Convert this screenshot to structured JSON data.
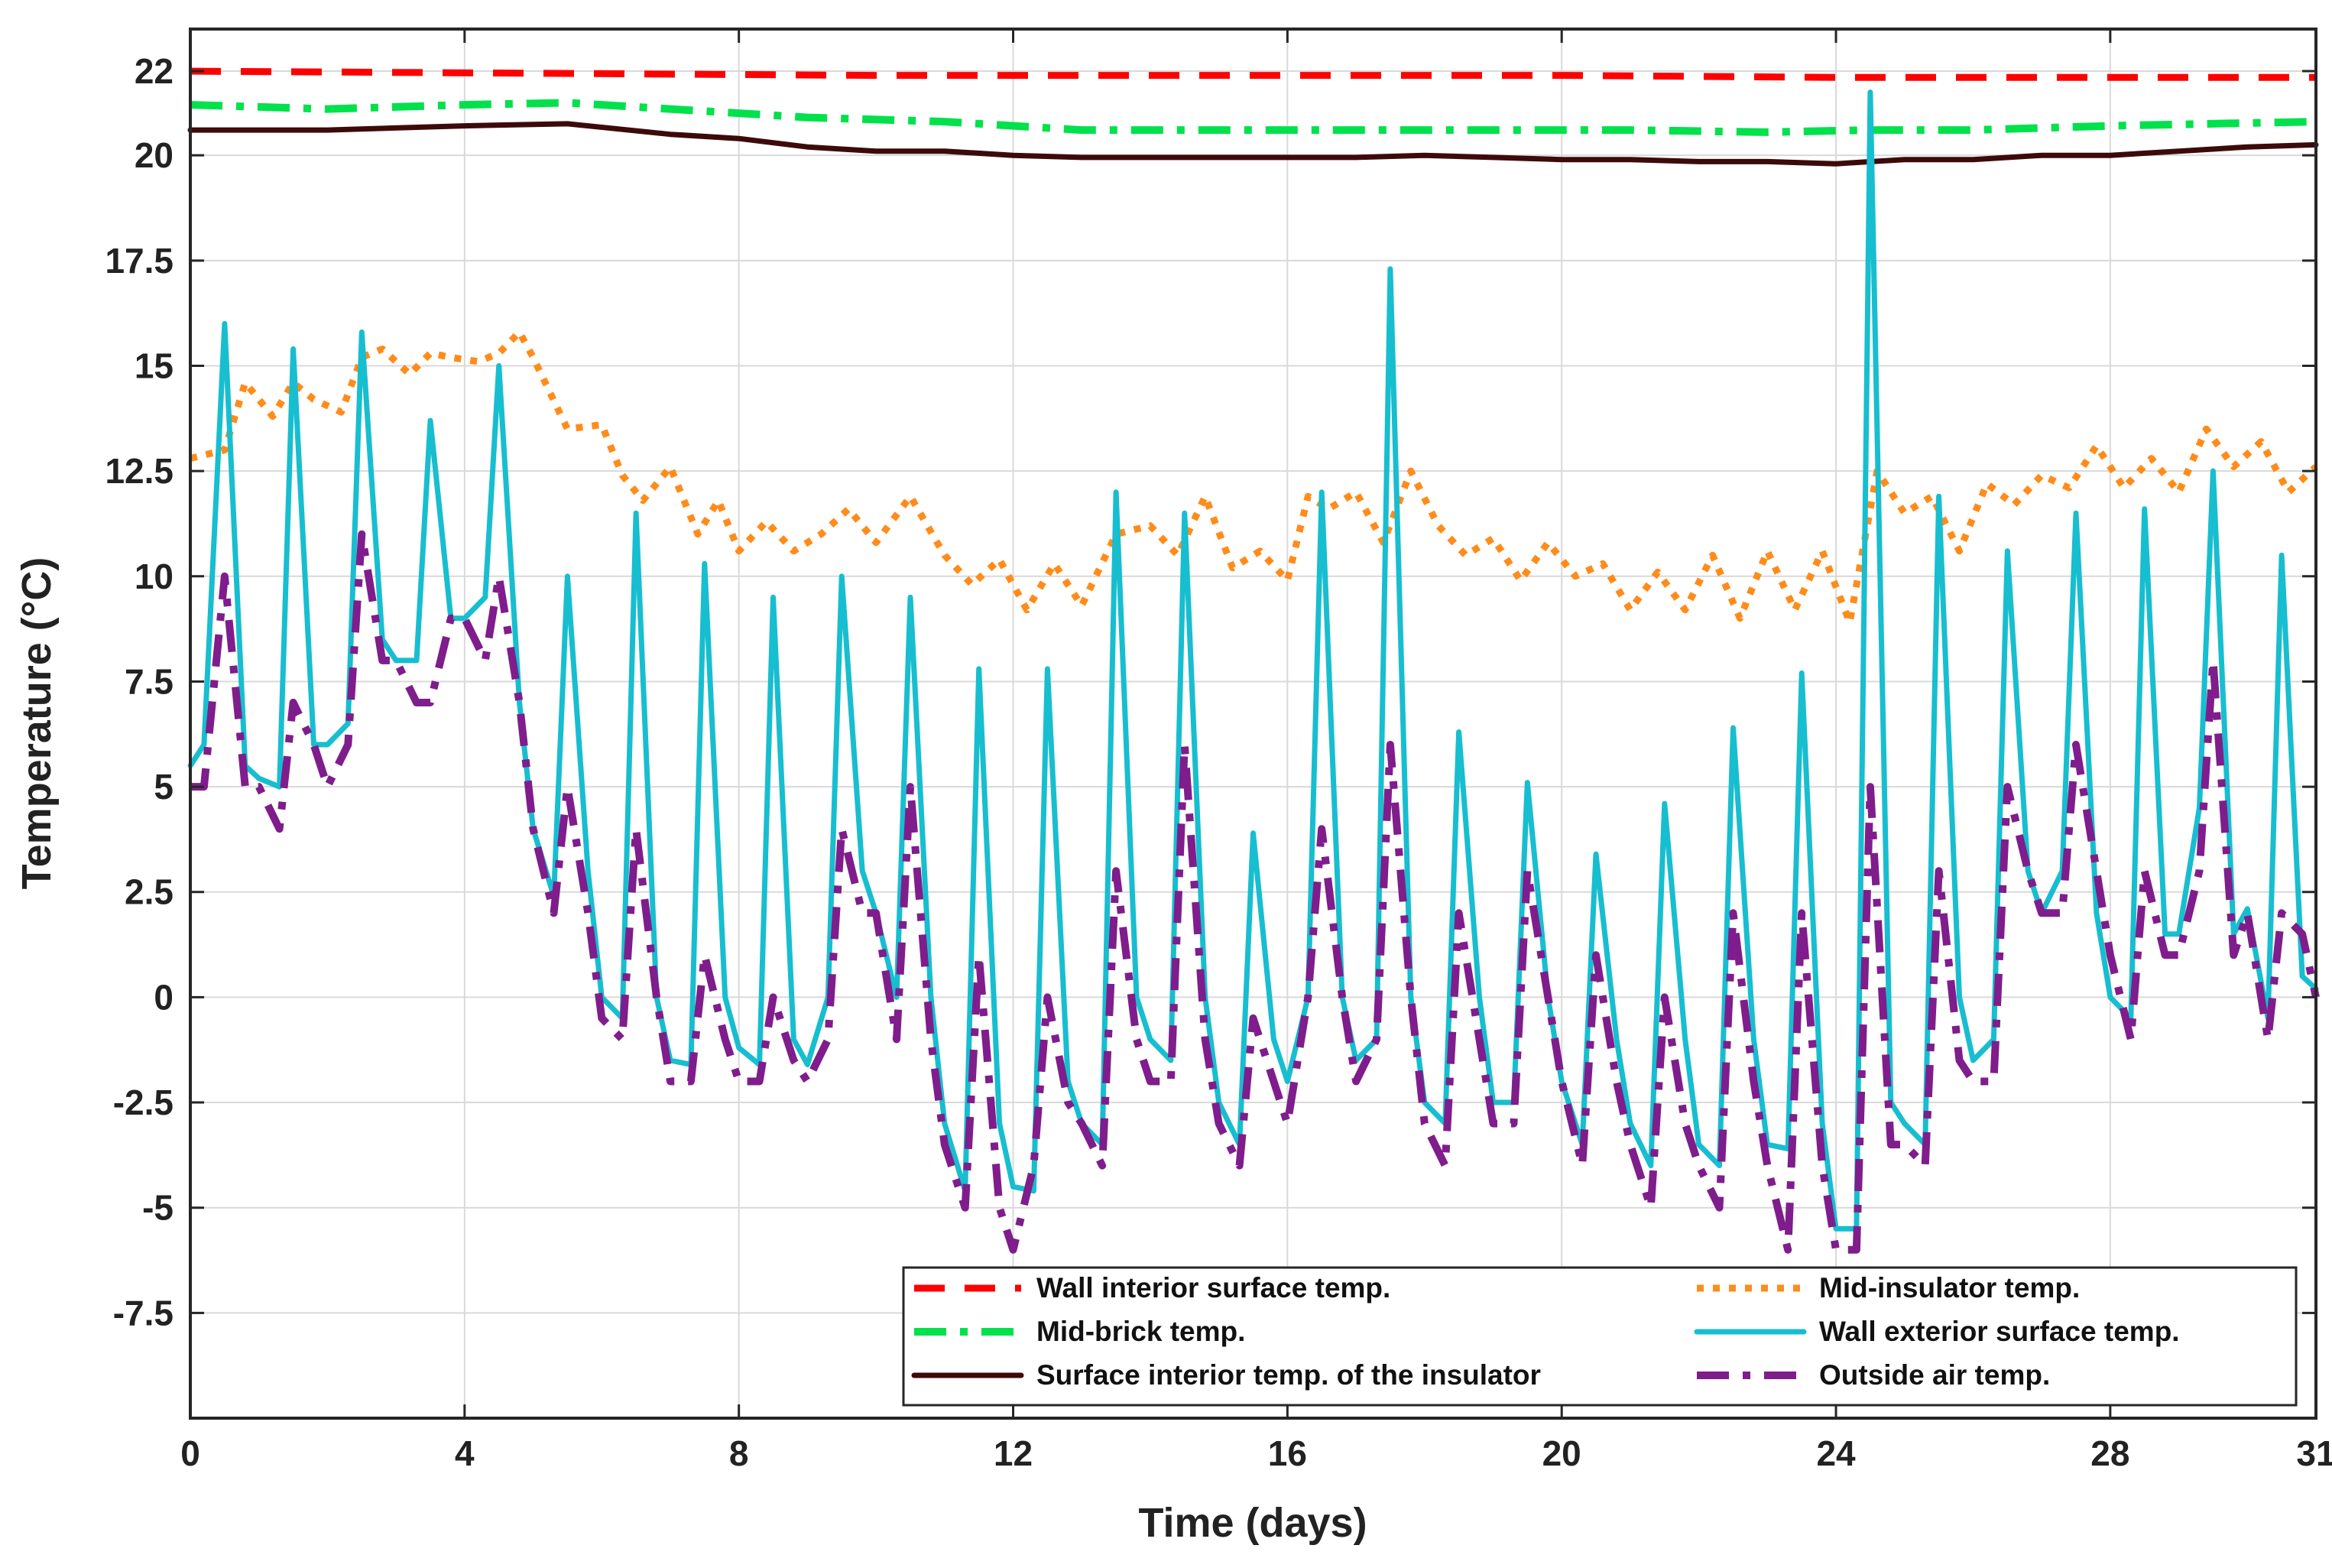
{
  "chart_data": {
    "type": "line",
    "xlabel": "Time (days)",
    "ylabel": "Temperature (°C)",
    "xlim": [
      0,
      31
    ],
    "ylim": [
      -10,
      23
    ],
    "grid": true,
    "legend_position": "bottom-right",
    "x_ticks": [
      0,
      4,
      8,
      12,
      16,
      20,
      24,
      28,
      31
    ],
    "x_tick_labels": [
      "0",
      "4",
      "8",
      "12",
      "16",
      "20",
      "24",
      "28",
      "31"
    ],
    "y_ticks": [
      22,
      20,
      17.5,
      15,
      12.5,
      10,
      7.5,
      5,
      2.5,
      0,
      -2.5,
      -5,
      -7.5
    ],
    "y_tick_labels": [
      "22",
      "20",
      "17.5",
      "15",
      "12.5",
      "10",
      "7.5",
      "5",
      "2.5",
      "0",
      "-2.5",
      "-5",
      "-7.5"
    ],
    "series": [
      {
        "name": "Wall interior surface temp.",
        "color": "#ff0000",
        "dash": "dashed",
        "x": [
          0,
          5,
          10,
          15,
          20,
          24,
          28,
          31
        ],
        "y": [
          22.0,
          21.95,
          21.9,
          21.9,
          21.9,
          21.85,
          21.85,
          21.85
        ]
      },
      {
        "name": "Mid-insulator temp.",
        "color": "#ff8c1a",
        "dash": "dotted",
        "x": [
          0,
          0.5,
          0.8,
          1.2,
          1.5,
          1.8,
          2.2,
          2.5,
          2.8,
          3.2,
          3.5,
          3.8,
          4.2,
          4.5,
          4.8,
          5.0,
          5.5,
          6.0,
          6.3,
          6.6,
          7.0,
          7.4,
          7.7,
          8.0,
          8.4,
          8.8,
          9.2,
          9.6,
          10.0,
          10.5,
          11.0,
          11.4,
          11.8,
          12.2,
          12.6,
          13.0,
          13.5,
          14.0,
          14.4,
          14.8,
          15.2,
          15.6,
          16.0,
          16.3,
          16.6,
          17.0,
          17.4,
          17.8,
          18.2,
          18.6,
          19.0,
          19.4,
          19.8,
          20.2,
          20.6,
          21.0,
          21.4,
          21.8,
          22.2,
          22.6,
          23.0,
          23.4,
          23.8,
          24.2,
          24.6,
          25.0,
          25.4,
          25.8,
          26.2,
          26.6,
          27.0,
          27.4,
          27.8,
          28.2,
          28.6,
          29.0,
          29.4,
          29.8,
          30.2,
          30.6,
          31.0
        ],
        "y": [
          12.8,
          13.0,
          14.6,
          13.8,
          14.6,
          14.2,
          13.9,
          15.2,
          15.4,
          14.8,
          15.3,
          15.2,
          15.1,
          15.3,
          15.8,
          15.2,
          13.5,
          13.6,
          12.4,
          11.8,
          12.6,
          11.0,
          11.8,
          10.6,
          11.3,
          10.6,
          11.0,
          11.6,
          10.8,
          11.9,
          10.5,
          9.8,
          10.4,
          9.2,
          10.3,
          9.3,
          11.0,
          11.2,
          10.5,
          11.9,
          10.2,
          10.6,
          9.9,
          11.9,
          11.6,
          12.0,
          10.8,
          12.5,
          11.2,
          10.5,
          10.9,
          9.9,
          10.8,
          10.0,
          10.3,
          9.2,
          10.1,
          9.2,
          10.5,
          9.0,
          10.6,
          9.2,
          10.6,
          8.9,
          12.5,
          11.5,
          11.9,
          10.6,
          12.2,
          11.7,
          12.4,
          12.1,
          13.1,
          12.1,
          12.8,
          12.0,
          13.5,
          12.6,
          13.2,
          12.0,
          12.6
        ]
      },
      {
        "name": "Mid-brick temp.",
        "color": "#00e14b",
        "dash": "dash-dot",
        "x": [
          0,
          2,
          4,
          5.5,
          7,
          9,
          11,
          13,
          15,
          17,
          19,
          21,
          23,
          24.5,
          26,
          28,
          31
        ],
        "y": [
          21.2,
          21.1,
          21.2,
          21.25,
          21.1,
          20.9,
          20.8,
          20.6,
          20.6,
          20.6,
          20.6,
          20.6,
          20.55,
          20.6,
          20.6,
          20.7,
          20.8
        ]
      },
      {
        "name": "Wall exterior surface temp.",
        "color": "#17becf",
        "dash": "solid",
        "x": [
          0,
          0.2,
          0.5,
          0.8,
          1.0,
          1.3,
          1.5,
          1.8,
          2.0,
          2.3,
          2.5,
          2.8,
          3.0,
          3.3,
          3.5,
          3.8,
          4.0,
          4.3,
          4.5,
          4.8,
          5.0,
          5.3,
          5.5,
          5.8,
          6.0,
          6.3,
          6.5,
          6.8,
          7.0,
          7.3,
          7.5,
          7.8,
          8.0,
          8.3,
          8.5,
          8.8,
          9.0,
          9.3,
          9.5,
          9.8,
          10.0,
          10.3,
          10.5,
          10.8,
          11.0,
          11.3,
          11.5,
          11.8,
          12.0,
          12.3,
          12.5,
          12.8,
          13.0,
          13.3,
          13.5,
          13.8,
          14.0,
          14.3,
          14.5,
          14.8,
          15.0,
          15.3,
          15.5,
          15.8,
          16.0,
          16.3,
          16.5,
          16.8,
          17.0,
          17.3,
          17.5,
          17.8,
          18.0,
          18.3,
          18.5,
          18.8,
          19.0,
          19.3,
          19.5,
          19.8,
          20.0,
          20.3,
          20.5,
          20.8,
          21.0,
          21.3,
          21.5,
          21.8,
          22.0,
          22.3,
          22.5,
          22.8,
          23.0,
          23.3,
          23.5,
          23.8,
          24.0,
          24.3,
          24.5,
          24.8,
          25.0,
          25.3,
          25.5,
          25.8,
          26.0,
          26.3,
          26.5,
          26.8,
          27.0,
          27.3,
          27.5,
          27.8,
          28.0,
          28.3,
          28.5,
          28.8,
          29.0,
          29.3,
          29.5,
          29.8,
          30.0,
          30.3,
          30.5,
          30.8,
          31.0
        ],
        "y": [
          5.5,
          6.0,
          16.0,
          5.5,
          5.2,
          5.0,
          15.4,
          6.0,
          6.0,
          6.5,
          15.8,
          8.5,
          8.0,
          8.0,
          13.7,
          9.0,
          9.0,
          9.5,
          15.0,
          7.0,
          4.0,
          2.4,
          10.0,
          3.0,
          0.0,
          -0.5,
          11.5,
          0.0,
          -1.5,
          -1.6,
          10.3,
          0.0,
          -1.2,
          -1.6,
          9.5,
          -1.0,
          -1.6,
          0.0,
          10.0,
          3.0,
          2.0,
          0.0,
          9.5,
          0.0,
          -3.0,
          -4.6,
          7.8,
          -3.0,
          -4.5,
          -4.6,
          7.8,
          -2.0,
          -3.0,
          -3.5,
          12.0,
          0.0,
          -1.0,
          -1.5,
          11.5,
          0.0,
          -2.5,
          -3.5,
          3.9,
          -1.0,
          -2.0,
          0.0,
          12.0,
          0.0,
          -1.5,
          -1.0,
          17.3,
          0.0,
          -2.5,
          -3.0,
          6.3,
          0.0,
          -2.5,
          -2.5,
          5.1,
          0.0,
          -2.0,
          -3.5,
          3.4,
          -1.0,
          -3.0,
          -4.0,
          4.6,
          -1.0,
          -3.5,
          -4.0,
          6.4,
          -1.0,
          -3.5,
          -3.6,
          7.7,
          -3.0,
          -5.5,
          -5.5,
          21.5,
          -2.5,
          -3.0,
          -3.5,
          11.9,
          0.0,
          -1.5,
          -1.0,
          10.6,
          3.0,
          2.0,
          3.0,
          11.5,
          2.0,
          0.0,
          -0.5,
          11.6,
          1.5,
          1.5,
          4.5,
          12.5,
          1.5,
          2.1,
          -0.5,
          10.5,
          0.5,
          0.2
        ]
      },
      {
        "name": "Surface interior temp. of the insulator",
        "color": "#3d0a0a",
        "dash": "solid",
        "x": [
          0,
          2,
          4,
          5.5,
          7,
          8,
          9,
          10,
          11,
          12,
          13,
          14,
          15,
          16,
          17,
          18,
          19,
          20,
          21,
          22,
          23,
          24,
          25,
          26,
          27,
          28,
          29,
          30,
          31
        ],
        "y": [
          20.6,
          20.6,
          20.7,
          20.75,
          20.5,
          20.4,
          20.2,
          20.1,
          20.1,
          20.0,
          19.95,
          19.95,
          19.95,
          19.95,
          19.95,
          20.0,
          19.95,
          19.9,
          19.9,
          19.85,
          19.85,
          19.8,
          19.9,
          19.9,
          20.0,
          20.0,
          20.1,
          20.2,
          20.25
        ]
      },
      {
        "name": "Outside air temp.",
        "color": "#7f1d8c",
        "dash": "dash-dot",
        "x": [
          0,
          0.2,
          0.5,
          0.8,
          1.0,
          1.3,
          1.5,
          1.8,
          2.0,
          2.3,
          2.5,
          2.8,
          3.0,
          3.3,
          3.5,
          3.8,
          4.0,
          4.3,
          4.5,
          4.8,
          5.0,
          5.3,
          5.5,
          5.8,
          6.0,
          6.3,
          6.5,
          6.8,
          7.0,
          7.3,
          7.5,
          7.8,
          8.0,
          8.3,
          8.5,
          8.8,
          9.0,
          9.3,
          9.5,
          9.8,
          10.0,
          10.3,
          10.5,
          10.8,
          11.0,
          11.3,
          11.5,
          11.8,
          12.0,
          12.3,
          12.5,
          12.8,
          13.0,
          13.3,
          13.5,
          13.8,
          14.0,
          14.3,
          14.5,
          14.8,
          15.0,
          15.3,
          15.5,
          15.8,
          16.0,
          16.3,
          16.5,
          16.8,
          17.0,
          17.3,
          17.5,
          17.8,
          18.0,
          18.3,
          18.5,
          18.8,
          19.0,
          19.3,
          19.5,
          19.8,
          20.0,
          20.3,
          20.5,
          20.8,
          21.0,
          21.3,
          21.5,
          21.8,
          22.0,
          22.3,
          22.5,
          22.8,
          23.0,
          23.3,
          23.5,
          23.8,
          24.0,
          24.3,
          24.5,
          24.8,
          25.0,
          25.3,
          25.5,
          25.8,
          26.0,
          26.3,
          26.5,
          26.8,
          27.0,
          27.3,
          27.5,
          27.8,
          28.0,
          28.3,
          28.5,
          28.8,
          29.0,
          29.3,
          29.5,
          29.8,
          30.0,
          30.3,
          30.5,
          30.8,
          31.0
        ],
        "y": [
          5.0,
          5.0,
          10.0,
          5.0,
          5.0,
          4.0,
          7.0,
          6.0,
          5.0,
          6.0,
          11.0,
          8.0,
          8.0,
          7.0,
          7.0,
          9.0,
          9.0,
          8.0,
          10.0,
          7.0,
          4.0,
          2.0,
          5.0,
          2.0,
          -0.5,
          -1.0,
          4.0,
          0.0,
          -2.0,
          -2.0,
          1.0,
          -1.0,
          -2.0,
          -2.0,
          0.0,
          -1.5,
          -2.0,
          -1.0,
          4.0,
          2.0,
          2.0,
          -1.0,
          5.0,
          -1.0,
          -3.5,
          -5.0,
          1.0,
          -5.0,
          -6.0,
          -4.0,
          0.0,
          -2.5,
          -3.0,
          -4.0,
          3.0,
          -1.0,
          -2.0,
          -2.0,
          6.0,
          -1.0,
          -3.0,
          -4.0,
          -0.5,
          -2.0,
          -3.0,
          0.0,
          4.0,
          0.0,
          -2.0,
          -1.0,
          6.0,
          0.0,
          -3.0,
          -4.0,
          2.0,
          -1.0,
          -3.0,
          -3.0,
          3.0,
          0.0,
          -2.0,
          -4.0,
          1.0,
          -2.0,
          -3.5,
          -5.0,
          0.0,
          -3.0,
          -4.0,
          -5.0,
          2.0,
          -2.0,
          -4.0,
          -6.0,
          2.0,
          -4.0,
          -6.0,
          -6.0,
          5.0,
          -3.5,
          -3.5,
          -4.0,
          3.0,
          -1.5,
          -2.0,
          -2.0,
          5.0,
          3.0,
          2.0,
          2.0,
          6.0,
          3.0,
          1.0,
          -1.0,
          3.0,
          1.0,
          1.0,
          3.0,
          8.0,
          1.0,
          2.0,
          -1.0,
          2.0,
          1.5,
          0.0
        ]
      }
    ]
  }
}
